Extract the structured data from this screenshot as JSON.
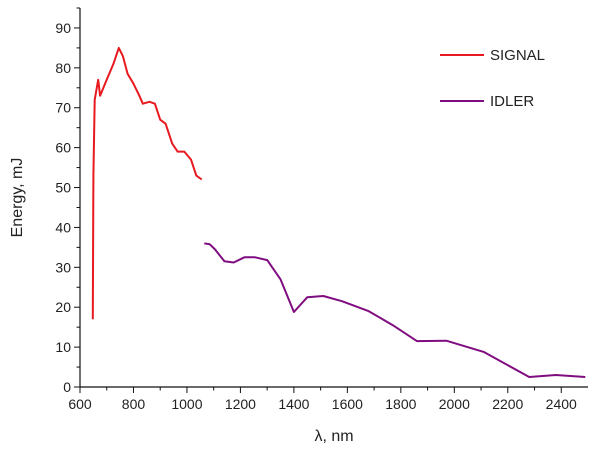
{
  "chart_data": {
    "type": "line",
    "title": "",
    "xlabel": "λ, nm",
    "ylabel": "Energy, mJ",
    "xlim": [
      600,
      2500
    ],
    "ylim": [
      0,
      95
    ],
    "x_ticks": [
      600,
      800,
      1000,
      1200,
      1400,
      1600,
      1800,
      2000,
      2200,
      2400
    ],
    "y_ticks": [
      0,
      10,
      20,
      30,
      40,
      50,
      60,
      70,
      80,
      90
    ],
    "grid": false,
    "legend_position": "top-right",
    "series": [
      {
        "name": "SIGNAL",
        "color": "#e8191f",
        "points": [
          [
            648,
            17
          ],
          [
            650,
            53
          ],
          [
            655,
            72
          ],
          [
            668,
            77
          ],
          [
            675,
            73
          ],
          [
            700,
            77
          ],
          [
            725,
            81
          ],
          [
            745,
            85
          ],
          [
            760,
            83
          ],
          [
            778,
            78.5
          ],
          [
            800,
            76
          ],
          [
            822,
            73
          ],
          [
            835,
            71
          ],
          [
            860,
            71.5
          ],
          [
            880,
            71
          ],
          [
            900,
            67
          ],
          [
            920,
            66
          ],
          [
            945,
            61
          ],
          [
            965,
            59
          ],
          [
            990,
            59
          ],
          [
            1015,
            57
          ],
          [
            1035,
            53
          ],
          [
            1055,
            52
          ]
        ]
      },
      {
        "name": "IDLER",
        "color": "#800d80",
        "points": [
          [
            1065,
            36
          ],
          [
            1085,
            35.8
          ],
          [
            1105,
            34.5
          ],
          [
            1140,
            31.5
          ],
          [
            1175,
            31.2
          ],
          [
            1215,
            32.5
          ],
          [
            1255,
            32.5
          ],
          [
            1300,
            31.8
          ],
          [
            1350,
            27
          ],
          [
            1400,
            18.8
          ],
          [
            1450,
            22.5
          ],
          [
            1510,
            22.8
          ],
          [
            1580,
            21.5
          ],
          [
            1680,
            19
          ],
          [
            1770,
            15.5
          ],
          [
            1860,
            11.5
          ],
          [
            1970,
            11.6
          ],
          [
            2110,
            8.8
          ],
          [
            2280,
            2.5
          ],
          [
            2380,
            3
          ],
          [
            2490,
            2.5
          ]
        ]
      }
    ]
  }
}
